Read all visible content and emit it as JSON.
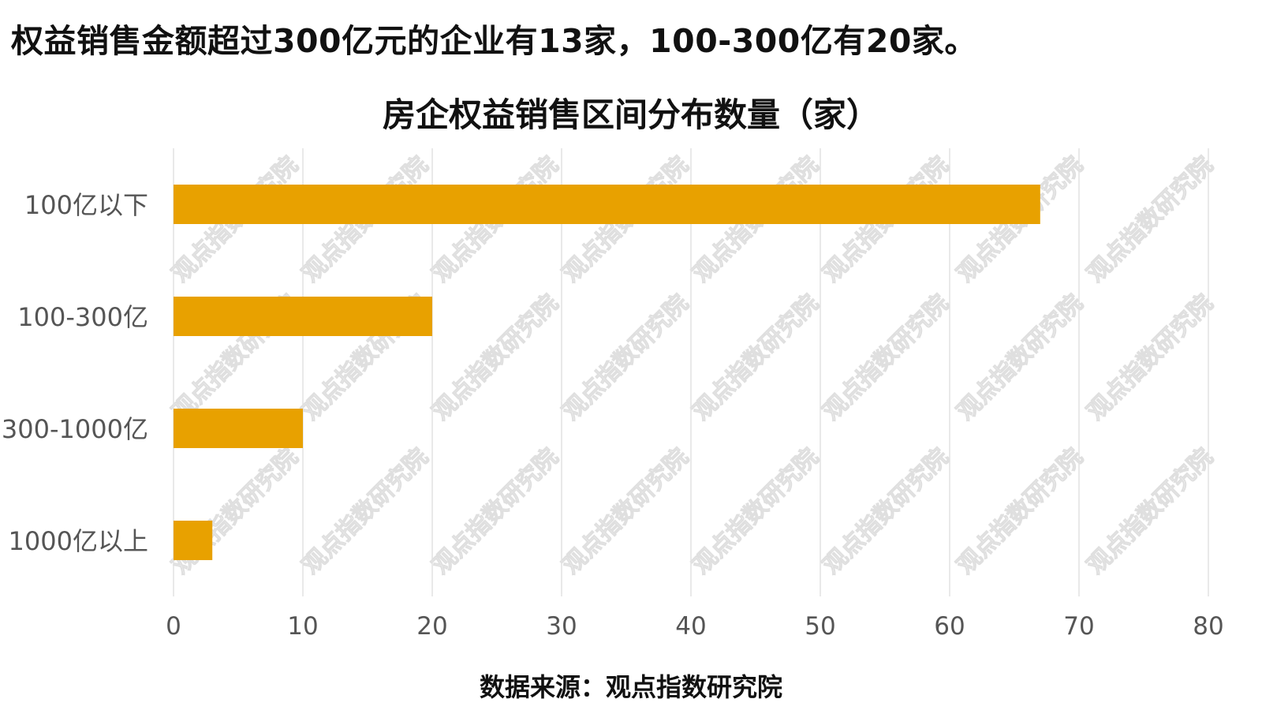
{
  "headline": "权益销售金额超过300亿元的企业有13家，100-300亿有20家。",
  "source": "数据来源：观点指数研究院",
  "watermark": "观点指数研究院",
  "colors": {
    "bar": "#E8A100",
    "grid": "#E2E2E2",
    "tick_text": "#555555"
  },
  "chart_data": {
    "type": "bar",
    "orientation": "horizontal",
    "title": "房企权益销售区间分布数量（家）",
    "categories": [
      "100亿以下",
      "100-300亿",
      "300-1000亿",
      "1000亿以上"
    ],
    "values": [
      67,
      20,
      10,
      3
    ],
    "xlim": [
      0,
      80
    ],
    "xticks": [
      0,
      10,
      20,
      30,
      40,
      50,
      60,
      70,
      80
    ],
    "grid": true,
    "legend": "none"
  }
}
